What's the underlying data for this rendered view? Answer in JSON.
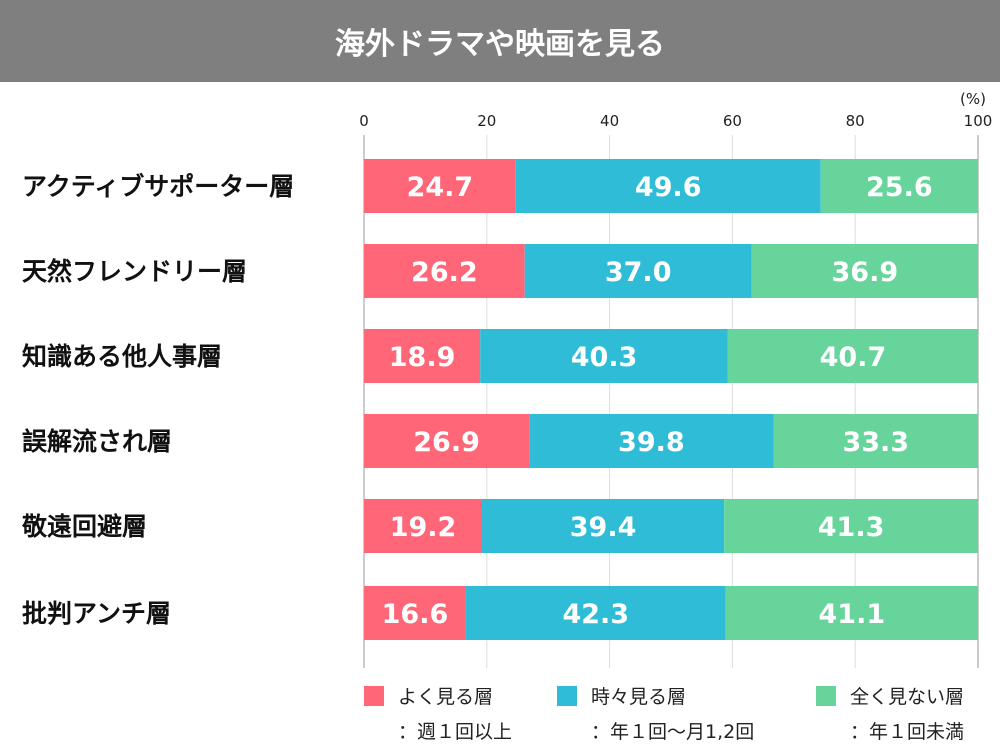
{
  "chart_data": {
    "type": "bar",
    "orientation": "horizontal",
    "stacked": true,
    "title": "海外ドラマや映画を見る",
    "unit_label": "(%)",
    "xlim": [
      0,
      100
    ],
    "xticks": [
      "0",
      "20",
      "40",
      "60",
      "80",
      "100"
    ],
    "grid": true,
    "legend_position": "bottom",
    "categories": [
      "アクティブサポーター層",
      "天然フレンドリー層",
      "知識ある他人事層",
      "誤解流され層",
      "敬遠回避層",
      "批判アンチ層"
    ],
    "series": [
      {
        "name": "よく見る層",
        "note": "：週１回以上",
        "color": "#ff6678",
        "values": [
          24.7,
          26.2,
          18.9,
          26.9,
          19.2,
          16.6
        ]
      },
      {
        "name": "時々見る層",
        "note": "：年１回〜月1,2回",
        "color": "#2ebcd6",
        "values": [
          49.6,
          37.0,
          40.3,
          39.8,
          39.4,
          42.3
        ]
      },
      {
        "name": "全く見ない層",
        "note": "：年１回未満",
        "color": "#66d49b",
        "values": [
          25.6,
          36.9,
          40.7,
          33.3,
          41.3,
          41.1
        ]
      }
    ]
  }
}
